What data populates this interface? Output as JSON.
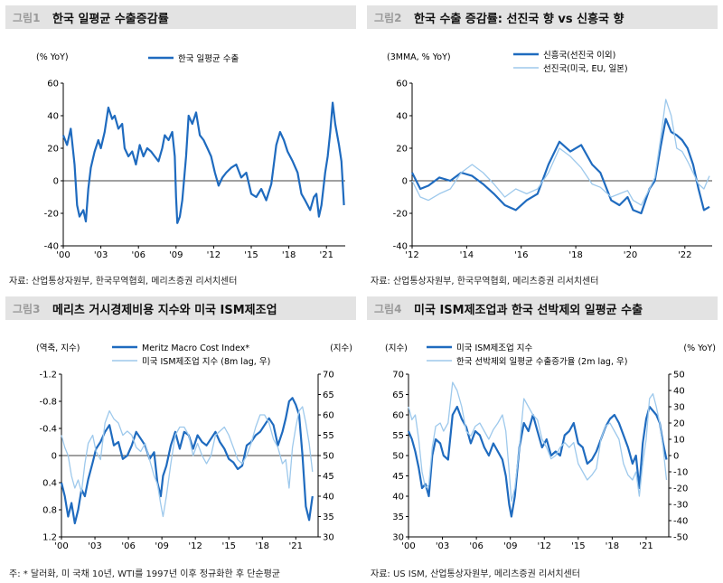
{
  "panels": [
    {
      "num": "그림1",
      "title": "한국 일평균 수출증감률",
      "source": "자료: 산업통상자원부, 한국무역협회, 메리츠증권 리서치센터"
    },
    {
      "num": "그림2",
      "title": "한국 수출 증감률: 선진국 향 vs 신흥국 향",
      "source": "자료: 산업통상자원부, 한국무역협회, 메리츠증권 리서치센터"
    },
    {
      "num": "그림3",
      "title": "메리츠 거시경제비용 지수와 미국 ISM제조업",
      "source": "주: * 달러화, 미 국채 10년, WTI를 1997년 이후 정규화한 후 단순평균"
    },
    {
      "num": "그림4",
      "title": "미국 ISM제조업과 한국 선박제외 일평균 수출",
      "source": "자료: US ISM, 산업통상자원부, 메리츠증권 리서치센터"
    }
  ],
  "colors": {
    "dark": "#1f6bbf",
    "light": "#9ec9ec",
    "axis": "#000000",
    "header_bg": "#e3e3e3"
  },
  "chart_data": [
    {
      "type": "line",
      "unit_label": "(% YoY)",
      "xticks": [
        "'00",
        "'03",
        "'06",
        "'09",
        "'12",
        "'15",
        "'18",
        "'21"
      ],
      "xlim": [
        2000,
        2022.5
      ],
      "ylim": [
        -40,
        60
      ],
      "yticks": [
        -40,
        -20,
        0,
        20,
        40,
        60
      ],
      "series": [
        {
          "name": "한국 일평균 수출",
          "color": "#1f6bbf",
          "x": [
            2000.0,
            2000.3,
            2000.6,
            2000.9,
            2001.1,
            2001.3,
            2001.6,
            2001.8,
            2002.0,
            2002.2,
            2002.5,
            2002.8,
            2003.0,
            2003.3,
            2003.6,
            2003.9,
            2004.1,
            2004.4,
            2004.7,
            2004.9,
            2005.2,
            2005.5,
            2005.8,
            2006.1,
            2006.4,
            2006.7,
            2007.0,
            2007.3,
            2007.6,
            2007.9,
            2008.1,
            2008.4,
            2008.7,
            2008.9,
            2009.0,
            2009.1,
            2009.3,
            2009.5,
            2009.8,
            2010.0,
            2010.3,
            2010.6,
            2010.9,
            2011.2,
            2011.5,
            2011.8,
            2012.1,
            2012.4,
            2012.7,
            2013.0,
            2013.4,
            2013.8,
            2014.2,
            2014.6,
            2015.0,
            2015.4,
            2015.8,
            2016.2,
            2016.6,
            2017.0,
            2017.3,
            2017.6,
            2017.9,
            2018.3,
            2018.7,
            2019.0,
            2019.3,
            2019.7,
            2020.0,
            2020.2,
            2020.4,
            2020.6,
            2020.9,
            2021.1,
            2021.3,
            2021.5,
            2021.7,
            2022.0,
            2022.2,
            2022.4
          ],
          "values": [
            28,
            22,
            32,
            10,
            -15,
            -22,
            -18,
            -25,
            -5,
            8,
            18,
            25,
            20,
            30,
            45,
            38,
            40,
            32,
            35,
            20,
            15,
            18,
            10,
            22,
            15,
            20,
            18,
            15,
            12,
            20,
            28,
            25,
            30,
            15,
            -10,
            -26,
            -22,
            -12,
            15,
            40,
            35,
            42,
            28,
            25,
            20,
            15,
            5,
            -3,
            2,
            5,
            8,
            10,
            2,
            5,
            -8,
            -10,
            -5,
            -12,
            -2,
            22,
            30,
            25,
            18,
            12,
            5,
            -8,
            -12,
            -18,
            -10,
            -8,
            -22,
            -15,
            5,
            15,
            30,
            48,
            35,
            22,
            12,
            -15
          ]
        }
      ]
    },
    {
      "type": "line",
      "unit_label": "(3MMA, % YoY)",
      "xticks": [
        "'12",
        "'14",
        "'16",
        "'18",
        "'20",
        "'22"
      ],
      "xlim": [
        2012,
        2023
      ],
      "ylim": [
        -40,
        60
      ],
      "yticks": [
        -40,
        -20,
        0,
        20,
        40,
        60
      ],
      "series": [
        {
          "name": "신흥국(선진국 이외)",
          "color": "#1f6bbf",
          "x": [
            2012.0,
            2012.3,
            2012.6,
            2013.0,
            2013.4,
            2013.8,
            2014.2,
            2014.6,
            2015.0,
            2015.4,
            2015.8,
            2016.2,
            2016.6,
            2017.0,
            2017.4,
            2017.8,
            2018.2,
            2018.6,
            2018.9,
            2019.3,
            2019.6,
            2019.9,
            2020.1,
            2020.4,
            2020.7,
            2020.9,
            2021.1,
            2021.3,
            2021.5,
            2021.7,
            2021.9,
            2022.1,
            2022.3,
            2022.5,
            2022.7,
            2022.9
          ],
          "values": [
            5,
            -5,
            -3,
            2,
            0,
            5,
            3,
            -2,
            -8,
            -15,
            -18,
            -12,
            -8,
            10,
            24,
            18,
            22,
            10,
            5,
            -12,
            -15,
            -10,
            -18,
            -20,
            -5,
            0,
            20,
            38,
            30,
            28,
            25,
            20,
            10,
            -5,
            -18,
            -16
          ]
        },
        {
          "name": "선진국(미국, EU, 일본)",
          "color": "#9ec9ec",
          "x": [
            2012.0,
            2012.3,
            2012.6,
            2013.0,
            2013.4,
            2013.8,
            2014.2,
            2014.6,
            2015.0,
            2015.4,
            2015.8,
            2016.2,
            2016.6,
            2017.0,
            2017.4,
            2017.8,
            2018.2,
            2018.6,
            2018.9,
            2019.3,
            2019.6,
            2019.9,
            2020.1,
            2020.4,
            2020.7,
            2020.9,
            2021.1,
            2021.3,
            2021.5,
            2021.7,
            2021.9,
            2022.1,
            2022.3,
            2022.5,
            2022.7,
            2022.9
          ],
          "values": [
            0,
            -10,
            -12,
            -8,
            -5,
            5,
            10,
            5,
            -2,
            -10,
            -5,
            -8,
            -5,
            5,
            20,
            15,
            8,
            -2,
            -4,
            -10,
            -8,
            -6,
            -12,
            -15,
            -5,
            2,
            25,
            50,
            40,
            20,
            18,
            12,
            5,
            -2,
            -5,
            3
          ]
        }
      ]
    },
    {
      "type": "line",
      "left_unit_label": "(역축, 지수)",
      "right_unit_label": "(지수)",
      "xticks": [
        "'00",
        "'03",
        "'06",
        "'09",
        "'12",
        "'15",
        "'18",
        "'21"
      ],
      "xlim": [
        2000,
        2023
      ],
      "ylim_left": [
        1.2,
        -1.2
      ],
      "yticks_left": [
        -1.2,
        -0.8,
        -0.4,
        0.0,
        0.4,
        0.8,
        1.2
      ],
      "ylim_right": [
        30,
        70
      ],
      "yticks_right": [
        30,
        35,
        40,
        45,
        50,
        55,
        60,
        65,
        70
      ],
      "series": [
        {
          "name": "Meritz Macro Cost Index*",
          "color": "#1f6bbf",
          "axis": "left",
          "x": [
            2000.0,
            2000.3,
            2000.6,
            2000.9,
            2001.2,
            2001.5,
            2001.8,
            2002.1,
            2002.4,
            2002.8,
            2003.1,
            2003.5,
            2003.9,
            2004.3,
            2004.7,
            2005.1,
            2005.5,
            2005.9,
            2006.3,
            2006.7,
            2007.1,
            2007.5,
            2007.9,
            2008.3,
            2008.6,
            2008.9,
            2009.1,
            2009.4,
            2009.8,
            2010.2,
            2010.6,
            2011.0,
            2011.4,
            2011.8,
            2012.2,
            2012.6,
            2013.0,
            2013.4,
            2013.8,
            2014.2,
            2014.6,
            2015.0,
            2015.4,
            2015.8,
            2016.2,
            2016.6,
            2017.0,
            2017.4,
            2017.8,
            2018.2,
            2018.6,
            2019.0,
            2019.4,
            2019.8,
            2020.1,
            2020.4,
            2020.7,
            2021.0,
            2021.3,
            2021.6,
            2021.9,
            2022.2,
            2022.5
          ],
          "values": [
            0.4,
            0.6,
            0.9,
            0.7,
            1.0,
            0.8,
            0.5,
            0.6,
            0.35,
            0.1,
            -0.1,
            -0.2,
            -0.35,
            -0.45,
            -0.15,
            -0.2,
            0.05,
            0.0,
            -0.15,
            -0.35,
            -0.25,
            -0.15,
            0.05,
            -0.05,
            0.4,
            0.6,
            0.3,
            0.15,
            -0.15,
            -0.35,
            -0.1,
            -0.35,
            -0.3,
            -0.1,
            -0.3,
            -0.2,
            -0.15,
            -0.25,
            -0.35,
            -0.2,
            -0.1,
            0.05,
            0.1,
            0.2,
            0.15,
            -0.15,
            -0.2,
            -0.3,
            -0.35,
            -0.45,
            -0.55,
            -0.45,
            -0.15,
            -0.35,
            -0.55,
            -0.8,
            -0.85,
            -0.75,
            -0.6,
            0.0,
            0.75,
            0.95,
            0.6
          ]
        },
        {
          "name": "미국 ISM제조업  지수 (8m lag, 우)",
          "color": "#9ec9ec",
          "axis": "right",
          "x": [
            2000.0,
            2000.3,
            2000.6,
            2000.9,
            2001.2,
            2001.5,
            2001.8,
            2002.1,
            2002.4,
            2002.8,
            2003.1,
            2003.5,
            2003.9,
            2004.3,
            2004.7,
            2005.1,
            2005.5,
            2005.9,
            2006.3,
            2006.7,
            2007.1,
            2007.5,
            2007.9,
            2008.3,
            2008.6,
            2008.9,
            2009.1,
            2009.4,
            2009.8,
            2010.2,
            2010.6,
            2011.0,
            2011.4,
            2011.8,
            2012.2,
            2012.6,
            2013.0,
            2013.4,
            2013.8,
            2014.2,
            2014.6,
            2015.0,
            2015.4,
            2015.8,
            2016.2,
            2016.6,
            2017.0,
            2017.4,
            2017.8,
            2018.2,
            2018.6,
            2019.0,
            2019.4,
            2019.8,
            2020.1,
            2020.4,
            2020.7,
            2021.0,
            2021.3,
            2021.6,
            2021.9,
            2022.2,
            2022.5
          ],
          "values": [
            55,
            52,
            50,
            45,
            42,
            44,
            41,
            48,
            53,
            55,
            51,
            49,
            58,
            61,
            59,
            58,
            55,
            56,
            55,
            52,
            51,
            53,
            49,
            45,
            43,
            38,
            35,
            40,
            48,
            55,
            57,
            57,
            55,
            50,
            53,
            50,
            48,
            50,
            55,
            56,
            57,
            55,
            52,
            49,
            48,
            50,
            53,
            57,
            60,
            60,
            58,
            54,
            52,
            48,
            49,
            42,
            52,
            57,
            61,
            62,
            58,
            53,
            46
          ]
        }
      ]
    },
    {
      "type": "line",
      "left_unit_label": "(지수)",
      "right_unit_label": "(% YoY)",
      "xticks": [
        "'00",
        "'03",
        "'06",
        "'09",
        "'12",
        "'15",
        "'18",
        "'21"
      ],
      "xlim": [
        2000,
        2023
      ],
      "ylim_left": [
        30,
        70
      ],
      "yticks_left": [
        30,
        35,
        40,
        45,
        50,
        55,
        60,
        65,
        70
      ],
      "ylim_right": [
        -50,
        50
      ],
      "yticks_right": [
        -50,
        -40,
        -30,
        -20,
        -10,
        0,
        10,
        20,
        30,
        40,
        50
      ],
      "series": [
        {
          "name": "미국 ISM제조업  지수",
          "color": "#1f6bbf",
          "axis": "left",
          "x": [
            2000.0,
            2000.3,
            2000.6,
            2000.9,
            2001.2,
            2001.5,
            2001.8,
            2002.1,
            2002.4,
            2002.8,
            2003.1,
            2003.5,
            2003.9,
            2004.3,
            2004.7,
            2005.1,
            2005.5,
            2005.9,
            2006.3,
            2006.7,
            2007.1,
            2007.5,
            2007.9,
            2008.3,
            2008.6,
            2008.9,
            2009.1,
            2009.4,
            2009.8,
            2010.2,
            2010.6,
            2011.0,
            2011.4,
            2011.8,
            2012.2,
            2012.6,
            2013.0,
            2013.4,
            2013.8,
            2014.2,
            2014.6,
            2015.0,
            2015.4,
            2015.8,
            2016.2,
            2016.6,
            2017.0,
            2017.4,
            2017.8,
            2018.2,
            2018.6,
            2019.0,
            2019.4,
            2019.8,
            2020.1,
            2020.4,
            2020.7,
            2021.0,
            2021.3,
            2021.6,
            2021.9,
            2022.2,
            2022.5,
            2022.8
          ],
          "values": [
            56,
            54,
            51,
            47,
            42,
            43,
            40,
            50,
            54,
            53,
            50,
            49,
            60,
            62,
            59,
            57,
            53,
            56,
            55,
            52,
            50,
            53,
            51,
            49,
            45,
            38,
            35,
            40,
            52,
            58,
            56,
            60,
            56,
            52,
            54,
            50,
            51,
            50,
            55,
            56,
            58,
            53,
            52,
            48,
            49,
            51,
            54,
            57,
            59,
            60,
            58,
            55,
            52,
            48,
            50,
            42,
            53,
            59,
            62,
            61,
            60,
            58,
            53,
            49
          ]
        },
        {
          "name": "한국 선박제외 일평균 수출증가율 (2m lag, 우)",
          "color": "#9ec9ec",
          "axis": "right",
          "x": [
            2000.0,
            2000.3,
            2000.6,
            2000.9,
            2001.2,
            2001.5,
            2001.8,
            2002.1,
            2002.4,
            2002.8,
            2003.1,
            2003.5,
            2003.9,
            2004.3,
            2004.7,
            2005.1,
            2005.5,
            2005.9,
            2006.3,
            2006.7,
            2007.1,
            2007.5,
            2007.9,
            2008.3,
            2008.6,
            2008.9,
            2009.1,
            2009.4,
            2009.8,
            2010.2,
            2010.6,
            2011.0,
            2011.4,
            2011.8,
            2012.2,
            2012.6,
            2013.0,
            2013.4,
            2013.8,
            2014.2,
            2014.6,
            2015.0,
            2015.4,
            2015.8,
            2016.2,
            2016.6,
            2017.0,
            2017.4,
            2017.8,
            2018.2,
            2018.6,
            2019.0,
            2019.4,
            2019.8,
            2020.1,
            2020.4,
            2020.7,
            2021.0,
            2021.3,
            2021.6,
            2021.9,
            2022.2,
            2022.5,
            2022.8
          ],
          "values": [
            30,
            22,
            25,
            10,
            -10,
            -20,
            -18,
            5,
            18,
            20,
            15,
            20,
            45,
            40,
            30,
            15,
            12,
            18,
            20,
            15,
            10,
            16,
            20,
            25,
            15,
            -10,
            -28,
            -20,
            5,
            35,
            30,
            25,
            22,
            10,
            5,
            -2,
            0,
            5,
            8,
            5,
            8,
            -5,
            -10,
            -15,
            -12,
            -8,
            10,
            18,
            20,
            15,
            10,
            -5,
            -12,
            -15,
            -10,
            -25,
            -5,
            10,
            35,
            38,
            30,
            20,
            5,
            -15
          ]
        }
      ]
    }
  ]
}
